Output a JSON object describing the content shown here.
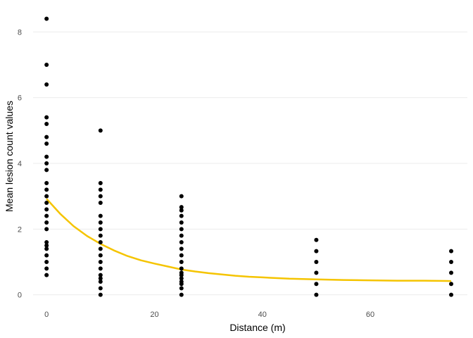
{
  "chart_data": {
    "type": "scatter",
    "xlabel": "Distance (m)",
    "ylabel": "Mean lesion count values",
    "xlim": [
      -2.5,
      78
    ],
    "ylim": [
      -0.2,
      8.8
    ],
    "x_ticks": [
      0,
      20,
      40,
      60
    ],
    "y_ticks": [
      0,
      2,
      4,
      6,
      8
    ],
    "grid": "horizontal",
    "colors": {
      "points": "#000000",
      "fit": "#f5c400",
      "grid": "#ebebeb"
    },
    "points": [
      {
        "x": 0,
        "y": 8.4
      },
      {
        "x": 0,
        "y": 7.0
      },
      {
        "x": 0,
        "y": 6.4
      },
      {
        "x": 0,
        "y": 5.4
      },
      {
        "x": 0,
        "y": 5.2
      },
      {
        "x": 0,
        "y": 4.8
      },
      {
        "x": 0,
        "y": 4.6
      },
      {
        "x": 0,
        "y": 4.2
      },
      {
        "x": 0,
        "y": 4.0
      },
      {
        "x": 0,
        "y": 3.8
      },
      {
        "x": 0,
        "y": 3.4
      },
      {
        "x": 0,
        "y": 3.2
      },
      {
        "x": 0,
        "y": 3.0
      },
      {
        "x": 0,
        "y": 2.8
      },
      {
        "x": 0,
        "y": 2.6
      },
      {
        "x": 0,
        "y": 2.4
      },
      {
        "x": 0,
        "y": 2.2
      },
      {
        "x": 0,
        "y": 2.0
      },
      {
        "x": 0,
        "y": 1.6
      },
      {
        "x": 0,
        "y": 1.5
      },
      {
        "x": 0,
        "y": 1.4
      },
      {
        "x": 0,
        "y": 1.2
      },
      {
        "x": 0,
        "y": 1.0
      },
      {
        "x": 0,
        "y": 0.8
      },
      {
        "x": 0,
        "y": 0.6
      },
      {
        "x": 10,
        "y": 5.0
      },
      {
        "x": 10,
        "y": 3.4
      },
      {
        "x": 10,
        "y": 3.2
      },
      {
        "x": 10,
        "y": 3.0
      },
      {
        "x": 10,
        "y": 2.8
      },
      {
        "x": 10,
        "y": 2.4
      },
      {
        "x": 10,
        "y": 2.2
      },
      {
        "x": 10,
        "y": 2.0
      },
      {
        "x": 10,
        "y": 1.8
      },
      {
        "x": 10,
        "y": 1.6
      },
      {
        "x": 10,
        "y": 1.4
      },
      {
        "x": 10,
        "y": 1.2
      },
      {
        "x": 10,
        "y": 1.0
      },
      {
        "x": 10,
        "y": 0.8
      },
      {
        "x": 10,
        "y": 0.6
      },
      {
        "x": 10,
        "y": 0.5
      },
      {
        "x": 10,
        "y": 0.4
      },
      {
        "x": 10,
        "y": 0.2
      },
      {
        "x": 10,
        "y": 0.0
      },
      {
        "x": 25,
        "y": 3.0
      },
      {
        "x": 25,
        "y": 2.67
      },
      {
        "x": 25,
        "y": 2.57
      },
      {
        "x": 25,
        "y": 2.4
      },
      {
        "x": 25,
        "y": 2.2
      },
      {
        "x": 25,
        "y": 2.0
      },
      {
        "x": 25,
        "y": 1.8
      },
      {
        "x": 25,
        "y": 1.6
      },
      {
        "x": 25,
        "y": 1.4
      },
      {
        "x": 25,
        "y": 1.2
      },
      {
        "x": 25,
        "y": 1.0
      },
      {
        "x": 25,
        "y": 0.8
      },
      {
        "x": 25,
        "y": 0.67
      },
      {
        "x": 25,
        "y": 0.6
      },
      {
        "x": 25,
        "y": 0.5
      },
      {
        "x": 25,
        "y": 0.4
      },
      {
        "x": 25,
        "y": 0.33
      },
      {
        "x": 25,
        "y": 0.2
      },
      {
        "x": 25,
        "y": 0.0
      },
      {
        "x": 50,
        "y": 1.67
      },
      {
        "x": 50,
        "y": 1.33
      },
      {
        "x": 50,
        "y": 1.0
      },
      {
        "x": 50,
        "y": 0.67
      },
      {
        "x": 50,
        "y": 0.33
      },
      {
        "x": 50,
        "y": 0.0
      },
      {
        "x": 75,
        "y": 1.33
      },
      {
        "x": 75,
        "y": 1.0
      },
      {
        "x": 75,
        "y": 0.67
      },
      {
        "x": 75,
        "y": 0.33
      },
      {
        "x": 75,
        "y": 0.0
      }
    ],
    "fit_curve": [
      {
        "x": 0,
        "y": 2.92
      },
      {
        "x": 2.5,
        "y": 2.47
      },
      {
        "x": 5,
        "y": 2.09
      },
      {
        "x": 7.5,
        "y": 1.79
      },
      {
        "x": 10,
        "y": 1.55
      },
      {
        "x": 12.5,
        "y": 1.35
      },
      {
        "x": 15,
        "y": 1.18
      },
      {
        "x": 17.5,
        "y": 1.05
      },
      {
        "x": 20,
        "y": 0.95
      },
      {
        "x": 22.5,
        "y": 0.86
      },
      {
        "x": 25,
        "y": 0.77
      },
      {
        "x": 27.5,
        "y": 0.71
      },
      {
        "x": 30,
        "y": 0.66
      },
      {
        "x": 32.5,
        "y": 0.62
      },
      {
        "x": 35,
        "y": 0.58
      },
      {
        "x": 37.5,
        "y": 0.55
      },
      {
        "x": 40,
        "y": 0.53
      },
      {
        "x": 45,
        "y": 0.49
      },
      {
        "x": 50,
        "y": 0.47
      },
      {
        "x": 55,
        "y": 0.45
      },
      {
        "x": 60,
        "y": 0.44
      },
      {
        "x": 65,
        "y": 0.43
      },
      {
        "x": 70,
        "y": 0.43
      },
      {
        "x": 75,
        "y": 0.42
      }
    ]
  }
}
